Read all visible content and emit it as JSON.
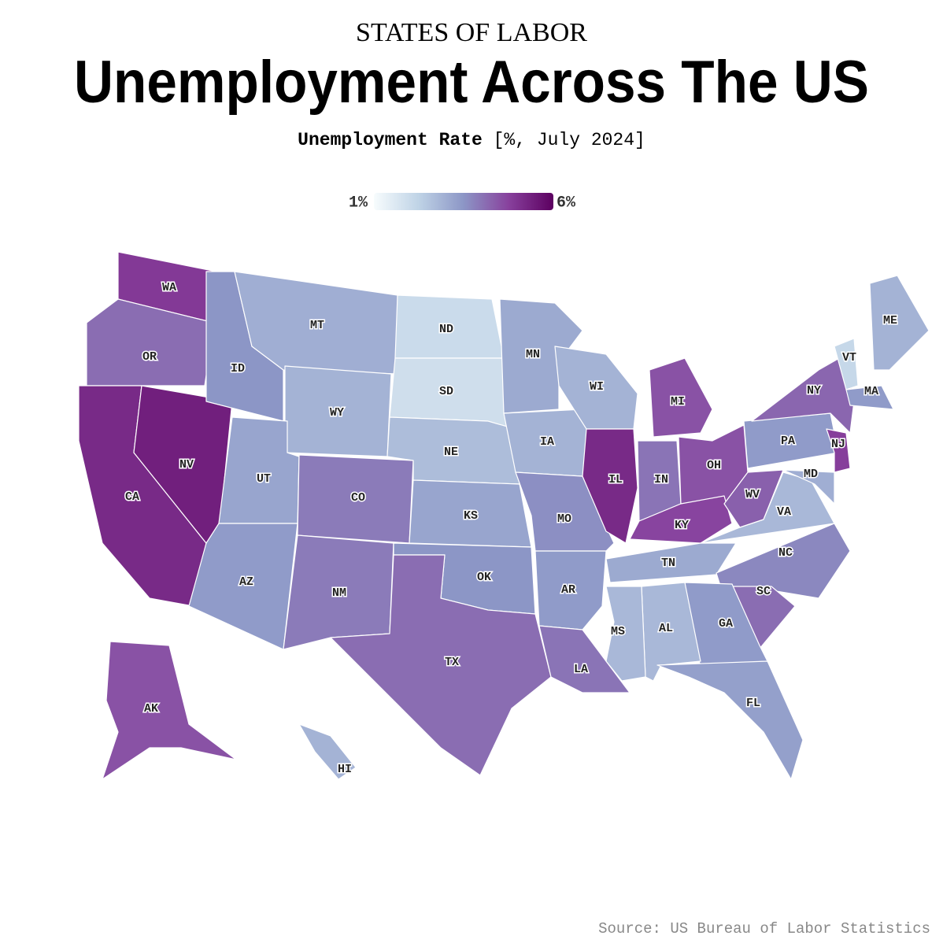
{
  "chart_data": {
    "type": "choropleth",
    "supertitle": "STATES OF LABOR",
    "title": "Unemployment Across The US",
    "subtitle": "Unemployment Rate",
    "subtitle_units": "[%, July 2024]",
    "source": "Source: US Bureau of Labor Statistics",
    "categories": [
      "WA",
      "OR",
      "CA",
      "NV",
      "ID",
      "MT",
      "WY",
      "UT",
      "AZ",
      "CO",
      "NM",
      "ND",
      "SD",
      "NE",
      "KS",
      "OK",
      "TX",
      "MN",
      "IA",
      "MO",
      "AR",
      "LA",
      "WI",
      "IL",
      "IN",
      "MI",
      "OH",
      "KY",
      "WV",
      "VA",
      "TN",
      "NC",
      "SC",
      "GA",
      "AL",
      "MS",
      "FL",
      "PA",
      "NY",
      "NJ",
      "MD",
      "VT",
      "ME",
      "MA",
      "AK",
      "HI"
    ],
    "values": [
      4.9,
      4.1,
      5.2,
      5.4,
      3.5,
      3.0,
      2.9,
      3.2,
      3.4,
      3.9,
      3.9,
      2.0,
      1.9,
      2.7,
      3.2,
      3.5,
      4.1,
      3.1,
      2.9,
      3.6,
      3.4,
      4.0,
      2.9,
      5.2,
      4.0,
      4.5,
      4.5,
      4.7,
      4.3,
      2.8,
      3.1,
      3.7,
      4.1,
      3.4,
      2.8,
      2.8,
      3.3,
      3.4,
      4.2,
      4.8,
      3.0,
      2.1,
      2.9,
      3.4,
      4.5,
      2.9
    ],
    "color_scale": [
      "#f7fcfd",
      "#bfd3e6",
      "#8c96c6",
      "#88419d",
      "#5c0060"
    ],
    "colorbar_lim": [
      1,
      6
    ],
    "colorbar_ticks": [
      {
        "value": 1,
        "label": "1%"
      },
      {
        "value": 6,
        "label": "6%"
      }
    ]
  }
}
